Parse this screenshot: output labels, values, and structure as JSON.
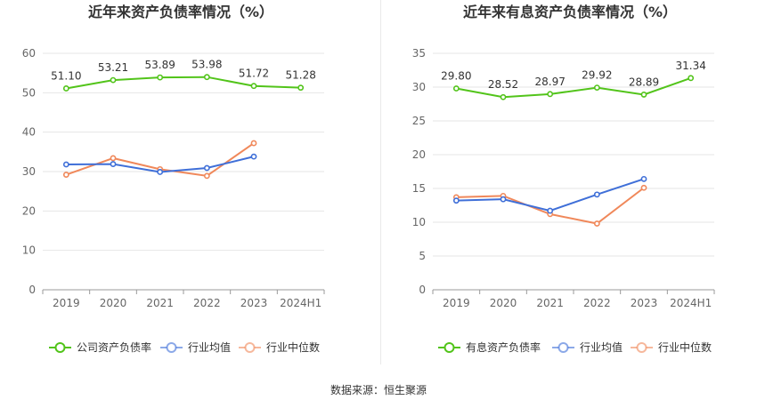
{
  "chart_data": [
    {
      "type": "line",
      "title": "近年来资产负债率情况（%）",
      "categories": [
        "2019",
        "2020",
        "2021",
        "2022",
        "2023",
        "2024H1"
      ],
      "ylim": [
        0,
        60
      ],
      "yticks": [
        0,
        10,
        20,
        30,
        40,
        50,
        60
      ],
      "grid": true,
      "legend_position": "bottom",
      "series": [
        {
          "name": "公司资产负债率",
          "color": "#52c41a",
          "labels": true,
          "values": [
            51.1,
            53.21,
            53.89,
            53.98,
            51.72,
            51.28
          ]
        },
        {
          "name": "行业均值",
          "color": "#3f6fd8",
          "labels": false,
          "values": [
            31.8,
            31.9,
            29.9,
            30.9,
            33.8,
            null
          ]
        },
        {
          "name": "行业中位数",
          "color": "#f0885a",
          "labels": false,
          "values": [
            29.2,
            33.4,
            30.6,
            28.9,
            37.2,
            null
          ]
        }
      ]
    },
    {
      "type": "line",
      "title": "近年来有息资产负债率情况（%）",
      "categories": [
        "2019",
        "2020",
        "2021",
        "2022",
        "2023",
        "2024H1"
      ],
      "ylim": [
        0,
        35
      ],
      "yticks": [
        0,
        5,
        10,
        15,
        20,
        25,
        30,
        35
      ],
      "grid": true,
      "legend_position": "bottom",
      "series": [
        {
          "name": "有息资产负债率",
          "color": "#52c41a",
          "labels": true,
          "values": [
            29.8,
            28.52,
            28.97,
            29.92,
            28.89,
            31.34
          ]
        },
        {
          "name": "行业均值",
          "color": "#3f6fd8",
          "labels": false,
          "values": [
            13.2,
            13.4,
            11.7,
            14.1,
            16.4,
            null
          ]
        },
        {
          "name": "行业中位数",
          "color": "#f0885a",
          "labels": false,
          "values": [
            13.7,
            13.9,
            11.2,
            9.8,
            15.1,
            null
          ]
        }
      ]
    }
  ],
  "footer": {
    "source": "数据来源：恒生聚源"
  }
}
